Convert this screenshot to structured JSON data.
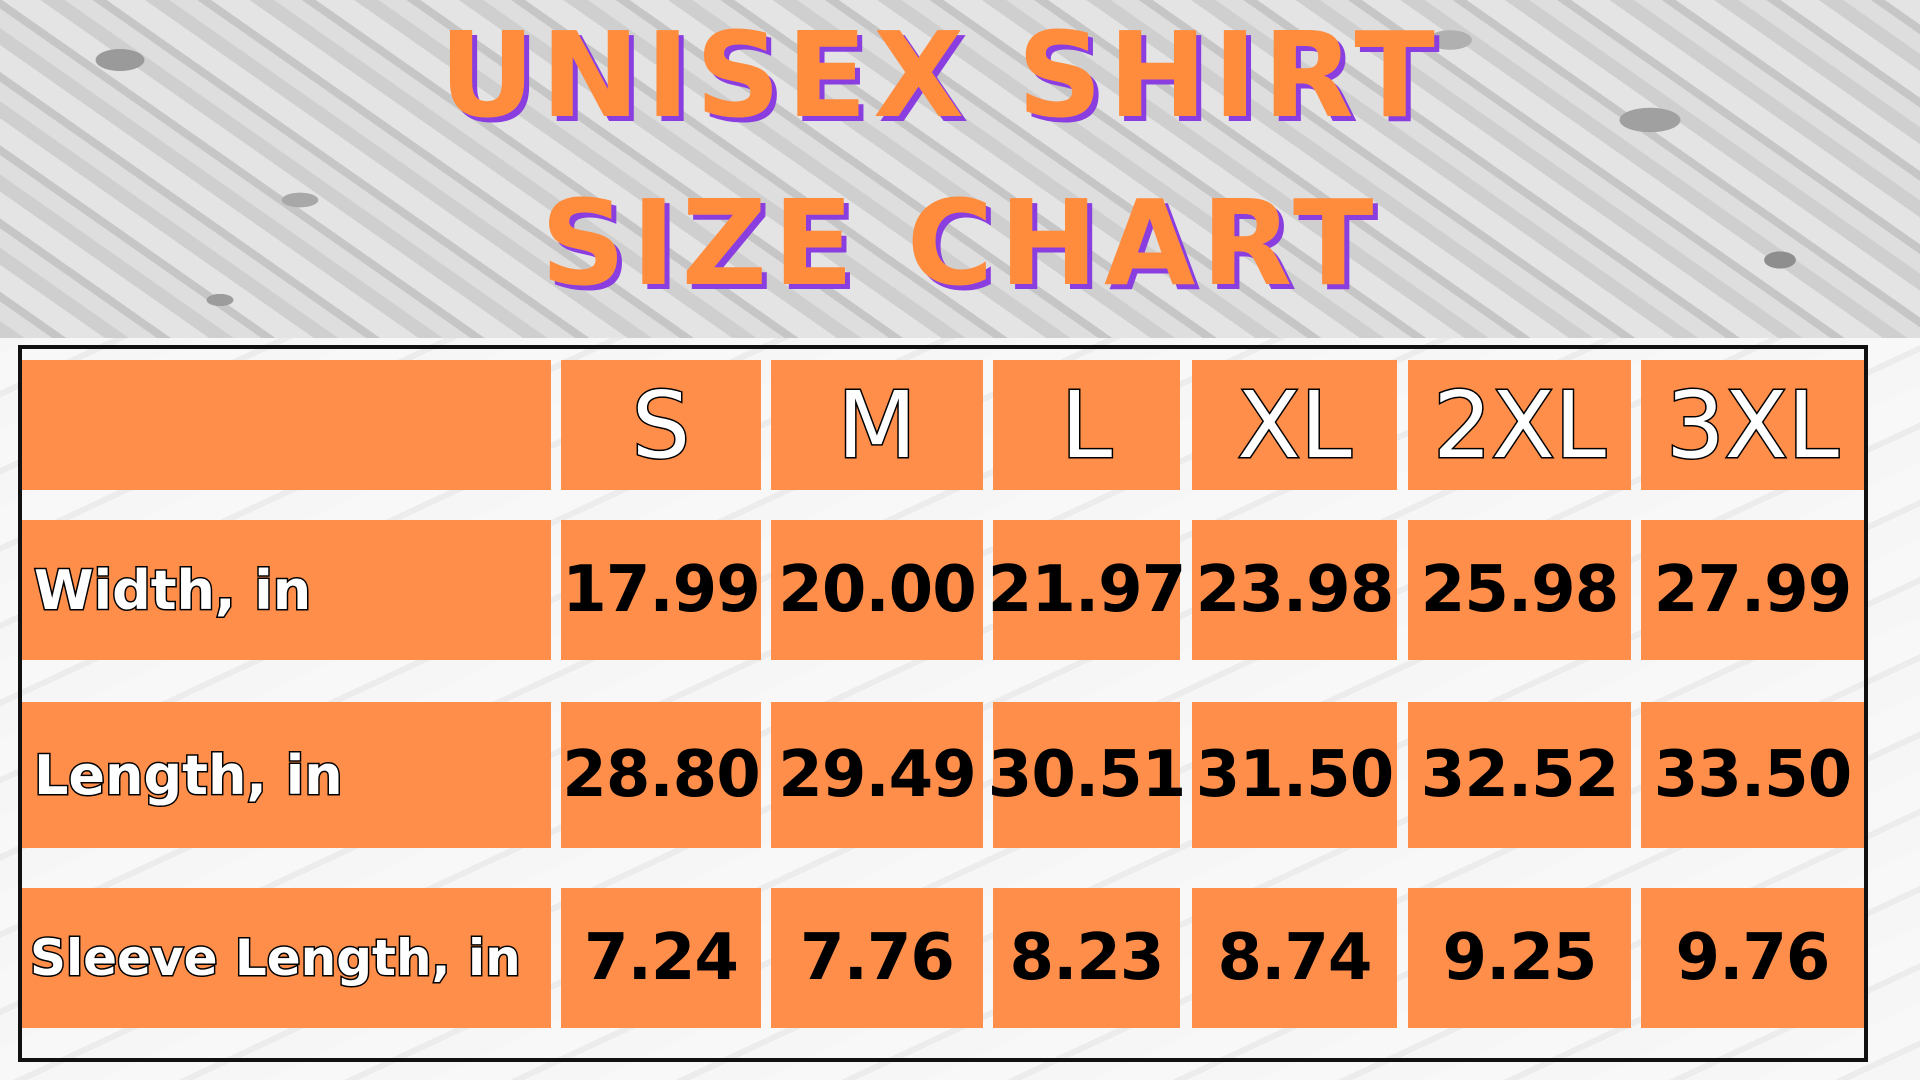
{
  "title": {
    "line1": "Unisex Shirt",
    "line2": "Size Chart"
  },
  "colors": {
    "cell": "#ff8e4b",
    "title": "#ff8b3d",
    "title_shadow": "#8a3ee0"
  },
  "chart_data": {
    "type": "table",
    "title": "Unisex Shirt Size Chart",
    "columns": [
      "S",
      "M",
      "L",
      "XL",
      "2XL",
      "3XL"
    ],
    "rows": [
      {
        "label": "Width, in",
        "values": [
          "17.99",
          "20.00",
          "21.97",
          "23.98",
          "25.98",
          "27.99"
        ]
      },
      {
        "label": "Length, in",
        "values": [
          "28.80",
          "29.49",
          "30.51",
          "31.50",
          "32.52",
          "33.50"
        ]
      },
      {
        "label": "Sleeve Length, in",
        "values": [
          "7.24",
          "7.76",
          "8.23",
          "8.74",
          "9.25",
          "9.76"
        ]
      }
    ]
  }
}
